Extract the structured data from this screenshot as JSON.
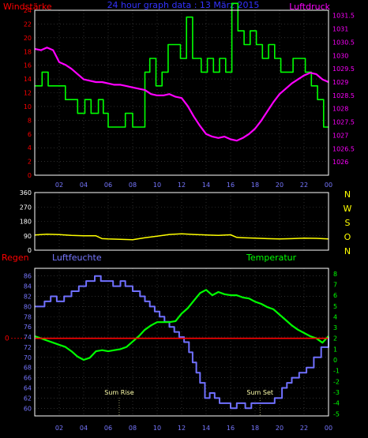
{
  "title": "24 hour graph data : 13 März 2015",
  "colors": {
    "background": "#000000",
    "frame": "#ffffff",
    "grid": "#4a4a4a",
    "wind": "#00ff00",
    "pressure": "#ff00ff",
    "direction": "#ffff00",
    "rain": "#ff0000",
    "humidity": "#7070ff",
    "temperature": "#00ff00",
    "title": "#3333ff",
    "tick_left_top": "#ff0000",
    "tick_right_top": "#ff00ff",
    "tick_hours": "#7777ff",
    "compass": "#ffff00",
    "sun_labels": "#ffffaa"
  },
  "x_ticks": [
    "02",
    "04",
    "06",
    "08",
    "10",
    "12",
    "14",
    "16",
    "18",
    "20",
    "22",
    "00"
  ],
  "chart_data": [
    {
      "type": "line",
      "title": "24 hour graph data : 13 März 2015",
      "x_range": [
        0,
        24
      ],
      "left_axis": {
        "label": "Windstärke",
        "range": [
          0,
          24
        ],
        "ticks": [
          "0",
          "2",
          "4",
          "6",
          "8",
          "10",
          "12",
          "14",
          "16",
          "18",
          "20",
          "22",
          "24"
        ]
      },
      "right_axis": {
        "label": "Luftdruck",
        "range": [
          1025.5,
          1031.7
        ],
        "ticks": [
          "1026",
          "1026.5",
          "1027",
          "1027.5",
          "1028",
          "1028.5",
          "1029",
          "1029.5",
          "1030",
          "1030.5",
          "1031",
          "1031.5"
        ]
      },
      "series": [
        {
          "name": "Windstärke",
          "axis": "left",
          "step": true,
          "x": [
            0,
            0.6,
            1.1,
            2.5,
            3.5,
            4.1,
            4.6,
            5.2,
            5.6,
            6,
            7.4,
            8,
            9,
            9.4,
            9.9,
            10.4,
            10.9,
            11.9,
            12.4,
            12.9,
            13.6,
            14.1,
            14.6,
            15.1,
            15.6,
            16.1,
            16.6,
            17.1,
            17.6,
            18.1,
            18.6,
            19.1,
            19.6,
            20.1,
            20.6,
            21.1,
            22.1,
            22.6,
            23.1,
            23.6,
            24
          ],
          "values": [
            13,
            15,
            13,
            11,
            9,
            11,
            9,
            11,
            9,
            7,
            9,
            7,
            15,
            17,
            13,
            15,
            19,
            17,
            23,
            17,
            15,
            17,
            15,
            17,
            15,
            25,
            21,
            19,
            21,
            19,
            17,
            19,
            17,
            15,
            15,
            17,
            15,
            13,
            11,
            7,
            7
          ]
        },
        {
          "name": "Luftdruck",
          "axis": "right",
          "x": [
            0,
            0.5,
            1,
            1.5,
            2,
            2.5,
            3,
            3.5,
            4,
            4.5,
            5,
            5.5,
            6,
            6.5,
            7,
            7.5,
            8,
            8.5,
            9,
            9.5,
            10,
            10.5,
            11,
            11.5,
            12,
            12.5,
            13,
            13.5,
            14,
            14.5,
            15,
            15.5,
            16,
            16.5,
            17,
            17.5,
            18,
            18.5,
            19,
            19.5,
            20,
            20.5,
            21,
            21.5,
            22,
            22.5,
            23,
            23.5,
            24
          ],
          "values": [
            1030.25,
            1030.2,
            1030.3,
            1030.2,
            1029.75,
            1029.65,
            1029.5,
            1029.3,
            1029.1,
            1029.05,
            1029.0,
            1029.0,
            1028.95,
            1028.9,
            1028.9,
            1028.85,
            1028.8,
            1028.75,
            1028.7,
            1028.55,
            1028.5,
            1028.5,
            1028.55,
            1028.45,
            1028.4,
            1028.1,
            1027.7,
            1027.35,
            1027.05,
            1026.95,
            1026.9,
            1026.95,
            1026.85,
            1026.8,
            1026.9,
            1027.05,
            1027.25,
            1027.55,
            1027.9,
            1028.25,
            1028.55,
            1028.75,
            1028.95,
            1029.1,
            1029.25,
            1029.35,
            1029.3,
            1029.1,
            1029.0
          ]
        }
      ]
    },
    {
      "type": "line",
      "x_range": [
        0,
        24
      ],
      "left_axis": {
        "range": [
          0,
          360
        ],
        "ticks": [
          "0",
          "90",
          "180",
          "270",
          "360"
        ]
      },
      "compass_labels": [
        "N",
        "W",
        "S",
        "O",
        "N"
      ],
      "series": [
        {
          "name": "Windrichtung",
          "x": [
            0,
            1,
            2,
            3,
            4,
            5,
            5.5,
            6,
            7,
            8,
            9,
            10,
            11,
            12,
            13,
            14,
            15,
            16,
            16.5,
            17,
            18,
            19,
            20,
            21,
            22,
            23,
            24
          ],
          "values": [
            95,
            100,
            97,
            92,
            90,
            90,
            72,
            70,
            68,
            65,
            78,
            88,
            98,
            102,
            98,
            95,
            92,
            96,
            80,
            78,
            75,
            72,
            70,
            72,
            75,
            74,
            70
          ]
        }
      ]
    },
    {
      "type": "line",
      "x_range": [
        0,
        24
      ],
      "axis_titles": {
        "rain": "Regen",
        "humidity": "Luftfeuchte",
        "temperature": "Temperatur"
      },
      "left_axis": {
        "label": "Luftfeuchte",
        "range": [
          58.5,
          87.5
        ],
        "ticks": [
          "60",
          "62",
          "64",
          "66",
          "68",
          "70",
          "72",
          "74",
          "76",
          "78",
          "80",
          "82",
          "84",
          "86"
        ]
      },
      "right_axis": {
        "label": "Temperatur",
        "range": [
          -5.2,
          8.5
        ],
        "ticks": [
          "-5",
          "-4",
          "-3",
          "-2",
          "-1",
          "0",
          "1",
          "2",
          "3",
          "4",
          "5",
          "6",
          "7",
          "8"
        ]
      },
      "rain_axis": {
        "label": "Regen",
        "ticks": [
          "0"
        ],
        "zero_at_temperature": 2
      },
      "annotations": [
        {
          "label": "Sum Rise",
          "x": 6.9
        },
        {
          "label": "Sum Set",
          "x": 18.4
        }
      ],
      "series": [
        {
          "name": "Luftfeuchte",
          "axis": "left",
          "step": true,
          "x": [
            0,
            0.8,
            1.3,
            1.8,
            2.4,
            3.0,
            3.6,
            4.2,
            4.9,
            5.4,
            6.4,
            7.0,
            7.4,
            8.0,
            8.6,
            9.0,
            9.4,
            9.8,
            10.2,
            10.6,
            11.0,
            11.4,
            11.8,
            12.2,
            12.6,
            12.9,
            13.2,
            13.5,
            13.9,
            14.3,
            14.7,
            15.1,
            15.5,
            16.0,
            16.5,
            17.2,
            17.7,
            18.2,
            19.0,
            19.6,
            20.2,
            20.6,
            21.0,
            21.6,
            22.2,
            22.8,
            23.4,
            24
          ],
          "values": [
            80,
            81,
            82,
            81,
            82,
            83,
            84,
            85,
            86,
            85,
            84,
            85,
            84,
            83,
            82,
            81,
            80,
            79,
            78,
            77,
            76,
            75,
            74,
            73,
            71,
            69,
            67,
            65,
            62,
            63,
            62,
            61,
            61,
            60,
            61,
            60,
            61,
            61,
            61,
            62,
            64,
            65,
            66,
            67,
            68,
            70,
            72,
            74
          ]
        },
        {
          "name": "Temperatur",
          "axis": "right",
          "x": [
            0,
            0.5,
            1,
            1.5,
            2,
            2.5,
            3,
            3.5,
            4,
            4.5,
            5,
            5.5,
            6,
            6.5,
            7,
            7.5,
            8,
            8.5,
            9,
            9.5,
            10,
            10.5,
            11,
            11.5,
            12,
            12.5,
            13,
            13.5,
            14,
            14.5,
            15,
            15.5,
            16,
            16.5,
            17,
            17.5,
            18,
            18.5,
            19,
            19.5,
            20,
            20.5,
            21,
            21.5,
            22,
            22.5,
            23,
            23.5,
            24
          ],
          "values": [
            2.2,
            2.0,
            1.8,
            1.6,
            1.4,
            1.2,
            0.8,
            0.3,
            0.0,
            0.2,
            0.8,
            0.9,
            0.8,
            0.9,
            1.0,
            1.2,
            1.7,
            2.2,
            2.8,
            3.2,
            3.5,
            3.5,
            3.5,
            3.6,
            4.3,
            4.8,
            5.5,
            6.2,
            6.5,
            6.0,
            6.3,
            6.1,
            6.0,
            6.0,
            5.8,
            5.7,
            5.4,
            5.2,
            4.9,
            4.7,
            4.2,
            3.7,
            3.2,
            2.8,
            2.5,
            2.2,
            2.0,
            1.6,
            2.2
          ]
        }
      ]
    }
  ]
}
